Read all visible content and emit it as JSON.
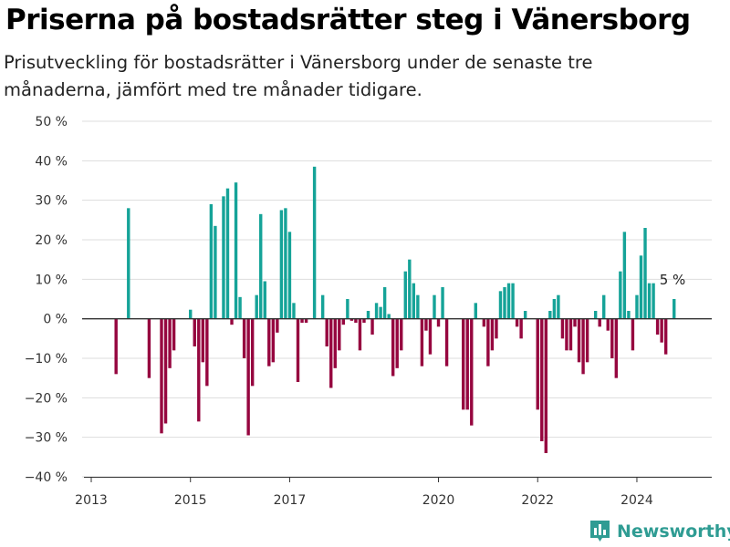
{
  "header": {
    "title": "Priserna på bostadsrätter steg i Vänersborg",
    "subtitle": "Prisutveckling för bostadsrätter i Vänersborg under de senaste tre månaderna, jämfört med tre månader tidigare."
  },
  "brand": {
    "name": "Newsworthy",
    "icon": "bar-chart-logo-icon"
  },
  "colors": {
    "positive": "#15a398",
    "negative": "#96063f",
    "grid": "#dddddd",
    "zero_line": "#333333"
  },
  "chart_data": {
    "type": "bar",
    "title": "Priserna på bostadsrätter steg i Vänersborg",
    "subtitle": "Prisutveckling för bostadsrätter i Vänersborg under de senaste tre månaderna, jämfört med tre månader tidigare.",
    "xlabel": "",
    "ylabel": "",
    "ylim": [
      -40,
      50
    ],
    "xlim": [
      "2013-01",
      "2025-10"
    ],
    "y_ticks": [
      {
        "value": 50,
        "label": "50 %"
      },
      {
        "value": 40,
        "label": "40 %"
      },
      {
        "value": 30,
        "label": "30 %"
      },
      {
        "value": 20,
        "label": "20 %"
      },
      {
        "value": 10,
        "label": "10 %"
      },
      {
        "value": 0,
        "label": "0 %"
      },
      {
        "value": -10,
        "label": "−10 %"
      },
      {
        "value": -20,
        "label": "−20 %"
      },
      {
        "value": -30,
        "label": "−30 %"
      },
      {
        "value": -40,
        "label": "−40 %"
      }
    ],
    "x_ticks": [
      {
        "date": "2013-01",
        "label": "2013"
      },
      {
        "date": "2015-01",
        "label": "2015"
      },
      {
        "date": "2017-01",
        "label": "2017"
      },
      {
        "date": "2020-01",
        "label": "2020"
      },
      {
        "date": "2022-01",
        "label": "2022"
      },
      {
        "date": "2024-01",
        "label": "2024"
      }
    ],
    "grid": true,
    "legend": "none",
    "annotations": [
      {
        "date": "2024-10",
        "value": 5,
        "text": "5 %"
      }
    ],
    "series": [
      {
        "points": [
          [
            "2013-07",
            -14
          ],
          [
            "2013-10",
            28
          ],
          [
            "2014-03",
            -15
          ],
          [
            "2014-06",
            -29
          ],
          [
            "2014-07",
            -26.5
          ],
          [
            "2014-08",
            -12.5
          ],
          [
            "2014-09",
            -8
          ],
          [
            "2015-01",
            2.3
          ],
          [
            "2015-02",
            -7
          ],
          [
            "2015-03",
            -26
          ],
          [
            "2015-04",
            -11
          ],
          [
            "2015-05",
            -17
          ],
          [
            "2015-06",
            29
          ],
          [
            "2015-07",
            23.5
          ],
          [
            "2015-09",
            31
          ],
          [
            "2015-10",
            33
          ],
          [
            "2015-11",
            -1.5
          ],
          [
            "2015-12",
            34.5
          ],
          [
            "2016-01",
            5.5
          ],
          [
            "2016-02",
            -10
          ],
          [
            "2016-03",
            -29.5
          ],
          [
            "2016-04",
            -17
          ],
          [
            "2016-05",
            6
          ],
          [
            "2016-06",
            26.5
          ],
          [
            "2016-07",
            9.5
          ],
          [
            "2016-08",
            -12
          ],
          [
            "2016-09",
            -11
          ],
          [
            "2016-10",
            -3.5
          ],
          [
            "2016-11",
            27.5
          ],
          [
            "2016-12",
            28
          ],
          [
            "2017-01",
            22
          ],
          [
            "2017-02",
            4
          ],
          [
            "2017-03",
            -16
          ],
          [
            "2017-04",
            -1
          ],
          [
            "2017-05",
            -1
          ],
          [
            "2017-07",
            38.5
          ],
          [
            "2017-09",
            6
          ],
          [
            "2017-10",
            -7
          ],
          [
            "2017-11",
            -17.5
          ],
          [
            "2017-12",
            -12.5
          ],
          [
            "2018-01",
            -8
          ],
          [
            "2018-02",
            -1.5
          ],
          [
            "2018-03",
            5
          ],
          [
            "2018-04",
            -0.5
          ],
          [
            "2018-05",
            -1
          ],
          [
            "2018-06",
            -8
          ],
          [
            "2018-07",
            -1
          ],
          [
            "2018-08",
            2
          ],
          [
            "2018-09",
            -4
          ],
          [
            "2018-10",
            4
          ],
          [
            "2018-11",
            3
          ],
          [
            "2018-12",
            8
          ],
          [
            "2019-01",
            1.2
          ],
          [
            "2019-02",
            -14.5
          ],
          [
            "2019-03",
            -12.5
          ],
          [
            "2019-04",
            -8
          ],
          [
            "2019-05",
            12
          ],
          [
            "2019-06",
            15
          ],
          [
            "2019-07",
            9
          ],
          [
            "2019-08",
            6
          ],
          [
            "2019-09",
            -12
          ],
          [
            "2019-10",
            -3
          ],
          [
            "2019-11",
            -9
          ],
          [
            "2019-12",
            6
          ],
          [
            "2020-01",
            -2
          ],
          [
            "2020-02",
            8
          ],
          [
            "2020-03",
            -12
          ],
          [
            "2020-07",
            -23
          ],
          [
            "2020-08",
            -23
          ],
          [
            "2020-09",
            -27
          ],
          [
            "2020-10",
            4
          ],
          [
            "2020-12",
            -2
          ],
          [
            "2021-01",
            -12
          ],
          [
            "2021-02",
            -8
          ],
          [
            "2021-03",
            -5
          ],
          [
            "2021-04",
            7
          ],
          [
            "2021-05",
            8
          ],
          [
            "2021-06",
            9
          ],
          [
            "2021-07",
            9
          ],
          [
            "2021-08",
            -2
          ],
          [
            "2021-09",
            -5
          ],
          [
            "2021-10",
            2
          ],
          [
            "2022-01",
            -23
          ],
          [
            "2022-02",
            -31
          ],
          [
            "2022-03",
            -34
          ],
          [
            "2022-04",
            2
          ],
          [
            "2022-05",
            5
          ],
          [
            "2022-06",
            6
          ],
          [
            "2022-07",
            -5
          ],
          [
            "2022-08",
            -8
          ],
          [
            "2022-09",
            -8
          ],
          [
            "2022-10",
            -2
          ],
          [
            "2022-11",
            -11
          ],
          [
            "2022-12",
            -14
          ],
          [
            "2023-01",
            -11
          ],
          [
            "2023-03",
            2
          ],
          [
            "2023-04",
            -2
          ],
          [
            "2023-05",
            6
          ],
          [
            "2023-06",
            -3
          ],
          [
            "2023-07",
            -10
          ],
          [
            "2023-08",
            -15
          ],
          [
            "2023-09",
            12
          ],
          [
            "2023-10",
            22
          ],
          [
            "2023-11",
            2
          ],
          [
            "2023-12",
            -8
          ],
          [
            "2024-01",
            6
          ],
          [
            "2024-02",
            16
          ],
          [
            "2024-03",
            23
          ],
          [
            "2024-04",
            9
          ],
          [
            "2024-05",
            9
          ],
          [
            "2024-06",
            -4
          ],
          [
            "2024-07",
            -6
          ],
          [
            "2024-08",
            -9
          ],
          [
            "2024-10",
            5
          ]
        ]
      }
    ]
  }
}
